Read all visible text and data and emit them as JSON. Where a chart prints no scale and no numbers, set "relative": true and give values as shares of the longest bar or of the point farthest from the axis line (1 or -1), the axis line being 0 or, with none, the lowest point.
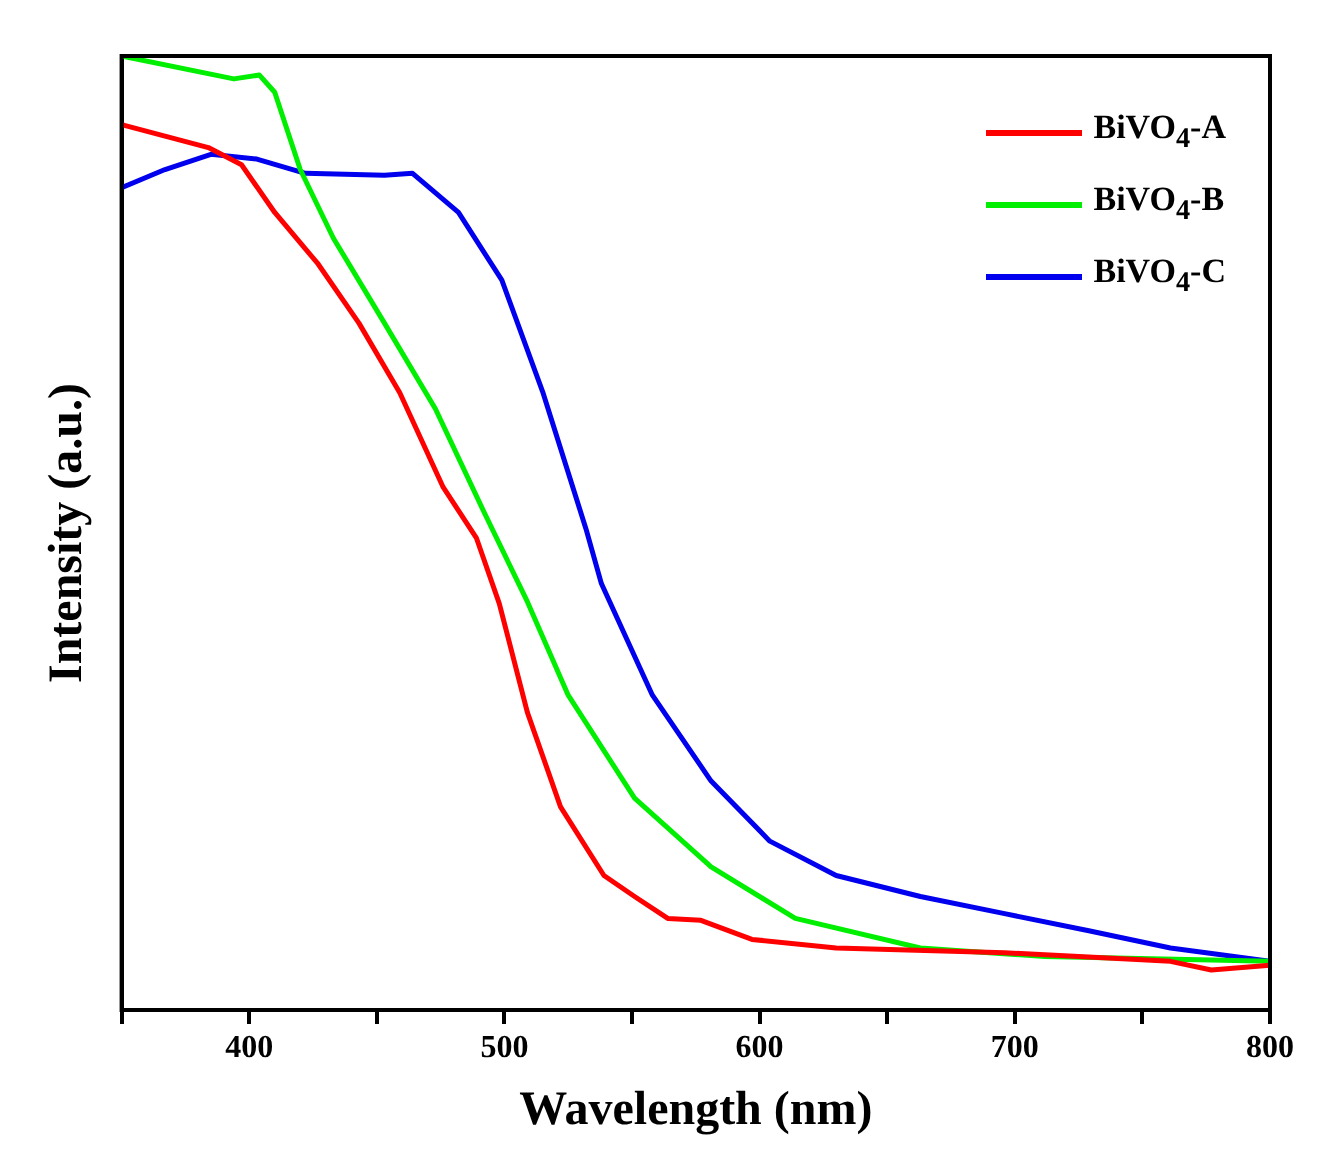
{
  "chart_data": {
    "type": "line",
    "xlabel": "Wavelength (nm)",
    "ylabel": "Intensity (a.u.)",
    "relative": true,
    "xlim": [
      350,
      800
    ],
    "xticks": [
      {
        "value": 350,
        "label": null
      },
      400,
      {
        "value": 450,
        "label": null
      },
      500,
      {
        "value": 550,
        "label": null
      },
      600,
      {
        "value": 650,
        "label": null
      },
      700,
      {
        "value": 750,
        "label": null
      },
      800
    ],
    "legend": "top right",
    "grid": false,
    "series": [
      {
        "name": "BiVO$_{4}$-A",
        "color": "#ff0000",
        "x": [
          350,
          367,
          384,
          397,
          410,
          427,
          443,
          459,
          476,
          489,
          498,
          509,
          522,
          539,
          551,
          564,
          577,
          597,
          630,
          696,
          761,
          777,
          800
        ],
        "values": [
          0.928,
          0.916,
          0.904,
          0.886,
          0.836,
          0.782,
          0.72,
          0.647,
          0.548,
          0.495,
          0.426,
          0.312,
          0.213,
          0.141,
          0.119,
          0.096,
          0.094,
          0.074,
          0.065,
          0.06,
          0.051,
          0.042,
          0.047
        ]
      },
      {
        "name": "BiVO$_{4}$-B",
        "color": "#00ee00",
        "x": [
          350,
          394,
          404,
          410,
          420,
          433,
          453,
          473,
          492,
          509,
          525,
          551,
          581,
          614,
          663,
          712,
          800
        ],
        "values": [
          1.0,
          0.976,
          0.98,
          0.962,
          0.881,
          0.809,
          0.72,
          0.63,
          0.522,
          0.428,
          0.33,
          0.222,
          0.15,
          0.096,
          0.065,
          0.056,
          0.051
        ]
      },
      {
        "name": "BiVO$_{4}$-C",
        "color": "#0000ee",
        "x": [
          350,
          367,
          385,
          403,
          422,
          453,
          464,
          482,
          499,
          515,
          532,
          538,
          558,
          581,
          604,
          630,
          663,
          696,
          729,
          761,
          800
        ],
        "values": [
          0.862,
          0.881,
          0.897,
          0.892,
          0.877,
          0.875,
          0.877,
          0.836,
          0.765,
          0.648,
          0.504,
          0.447,
          0.33,
          0.24,
          0.177,
          0.141,
          0.119,
          0.101,
          0.083,
          0.065,
          0.051
        ]
      }
    ]
  }
}
